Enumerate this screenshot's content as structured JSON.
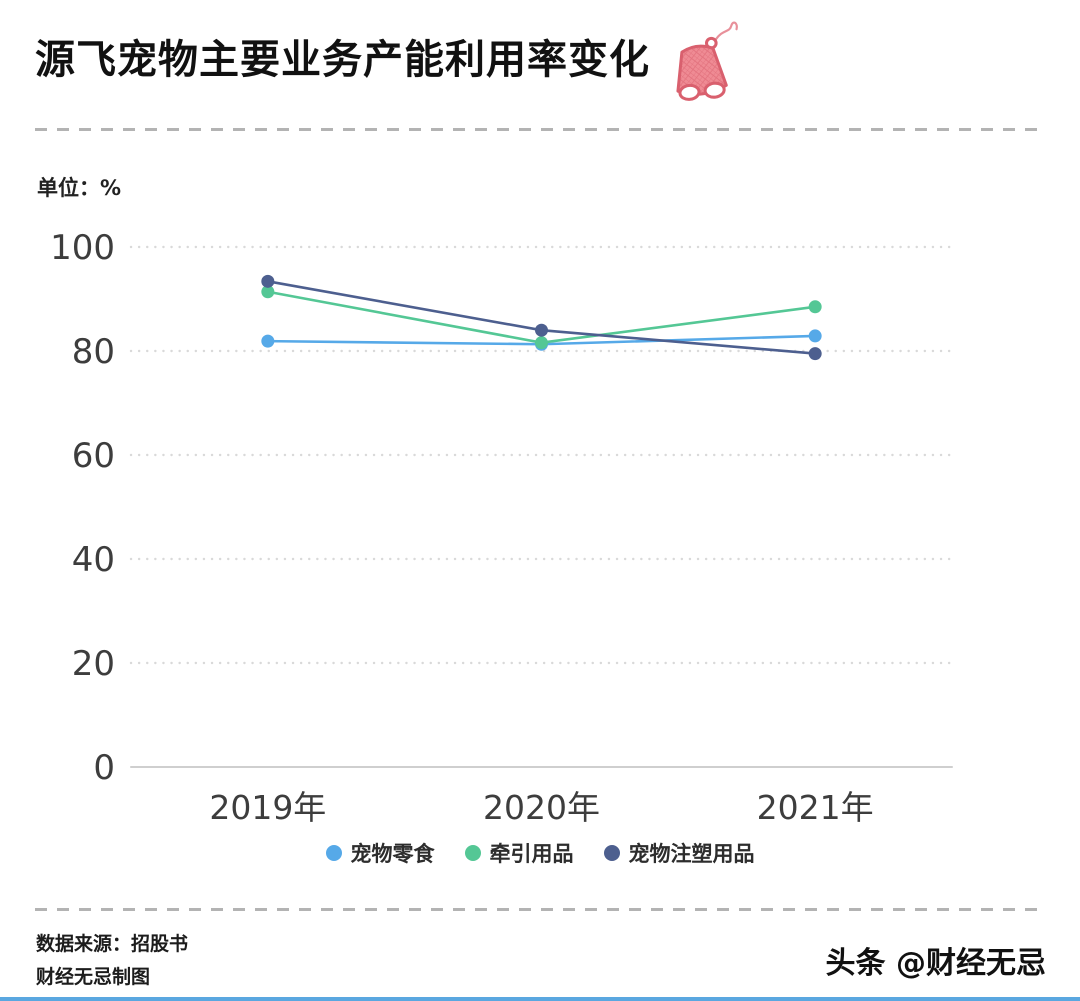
{
  "header": {
    "title": "源飞宠物主要业务产能利用率变化",
    "icon": "pet-harness-icon"
  },
  "unit_label": "单位：%",
  "chart_data": {
    "type": "line",
    "categories": [
      "2019年",
      "2020年",
      "2021年"
    ],
    "series": [
      {
        "name": "宠物零食",
        "color": "#56a9e8",
        "values": [
          81.9,
          81.3,
          82.9
        ]
      },
      {
        "name": "牵引用品",
        "color": "#54c795",
        "values": [
          91.4,
          81.6,
          88.5
        ]
      },
      {
        "name": "宠物注塑用品",
        "color": "#4d5f8f",
        "values": [
          93.4,
          84.0,
          79.5
        ]
      }
    ],
    "ylim": [
      0,
      100
    ],
    "yticks": [
      0,
      20,
      40,
      60,
      80,
      100
    ],
    "grid": "dotted-horizontal",
    "legend_position": "bottom",
    "xlabel": "",
    "ylabel": "单位：%"
  },
  "footer": {
    "source_line1": "数据来源：招股书",
    "source_line2": "财经无忌制图",
    "watermark": "头条 @财经无忌"
  }
}
